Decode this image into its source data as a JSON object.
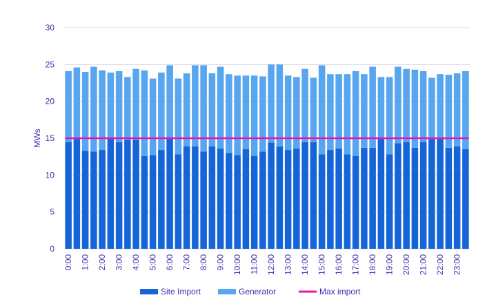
{
  "chart_data": {
    "type": "bar",
    "stacked": true,
    "ylabel": "MWs",
    "xlabel": "",
    "ylim": [
      0,
      30
    ],
    "yticks": [
      "0",
      "5",
      "10",
      "15",
      "20",
      "25",
      "30"
    ],
    "grid": "horizontal",
    "legend_position": "bottom",
    "categories": [
      "0:00",
      "0:30",
      "1:00",
      "1:30",
      "2:00",
      "2:30",
      "3:00",
      "3:30",
      "4:00",
      "4:30",
      "5:00",
      "5:30",
      "6:00",
      "6:30",
      "7:00",
      "7:30",
      "8:00",
      "8:30",
      "9:00",
      "9:30",
      "10:00",
      "10:30",
      "11:00",
      "11:30",
      "12:00",
      "12:30",
      "13:00",
      "13:30",
      "14:00",
      "14:30",
      "15:00",
      "15:30",
      "16:00",
      "16:30",
      "17:00",
      "17:30",
      "18:00",
      "18:30",
      "19:00",
      "19:30",
      "20:00",
      "20:30",
      "21:00",
      "21:30",
      "22:00",
      "22:30",
      "23:00",
      "23:30"
    ],
    "tick_labels": [
      "0:00",
      "1:00",
      "2:00",
      "3:00",
      "4:00",
      "5:00",
      "6:00",
      "7:00",
      "8:00",
      "9:00",
      "10:00",
      "11:00",
      "12:00",
      "13:00",
      "14:00",
      "15:00",
      "16:00",
      "17:00",
      "18:00",
      "19:00",
      "20:00",
      "21:00",
      "22:00",
      "23:00"
    ],
    "series": [
      {
        "name": "Site Import",
        "color": "#1565d8",
        "values": [
          14.5,
          14.9,
          13.3,
          13.2,
          13.4,
          14.9,
          14.5,
          14.8,
          14.8,
          12.6,
          12.7,
          13.4,
          14.9,
          12.8,
          13.9,
          13.9,
          13.2,
          13.9,
          13.6,
          13.0,
          12.7,
          13.5,
          12.6,
          13.2,
          14.4,
          13.9,
          13.4,
          13.6,
          14.5,
          14.5,
          12.8,
          13.4,
          13.6,
          12.8,
          12.6,
          13.7,
          13.7,
          14.9,
          12.8,
          14.3,
          14.5,
          13.7,
          14.5,
          14.9,
          14.9,
          13.7,
          13.9,
          13.5
        ]
      },
      {
        "name": "Generator",
        "color": "#58a6ef",
        "values": [
          9.6,
          9.7,
          10.7,
          11.5,
          10.8,
          9.0,
          9.6,
          8.5,
          9.6,
          11.6,
          10.4,
          10.5,
          10.0,
          10.3,
          9.9,
          11.0,
          11.7,
          9.9,
          11.1,
          10.7,
          10.8,
          10.0,
          10.9,
          10.2,
          10.6,
          11.1,
          10.1,
          9.7,
          9.9,
          8.7,
          12.1,
          10.3,
          10.1,
          10.9,
          11.5,
          10.0,
          11.0,
          8.4,
          10.5,
          10.4,
          9.9,
          10.6,
          9.6,
          8.3,
          8.8,
          9.9,
          9.9,
          10.6
        ]
      },
      {
        "name": "Max import",
        "type": "line",
        "color": "#e514b5",
        "value": 15
      }
    ]
  }
}
